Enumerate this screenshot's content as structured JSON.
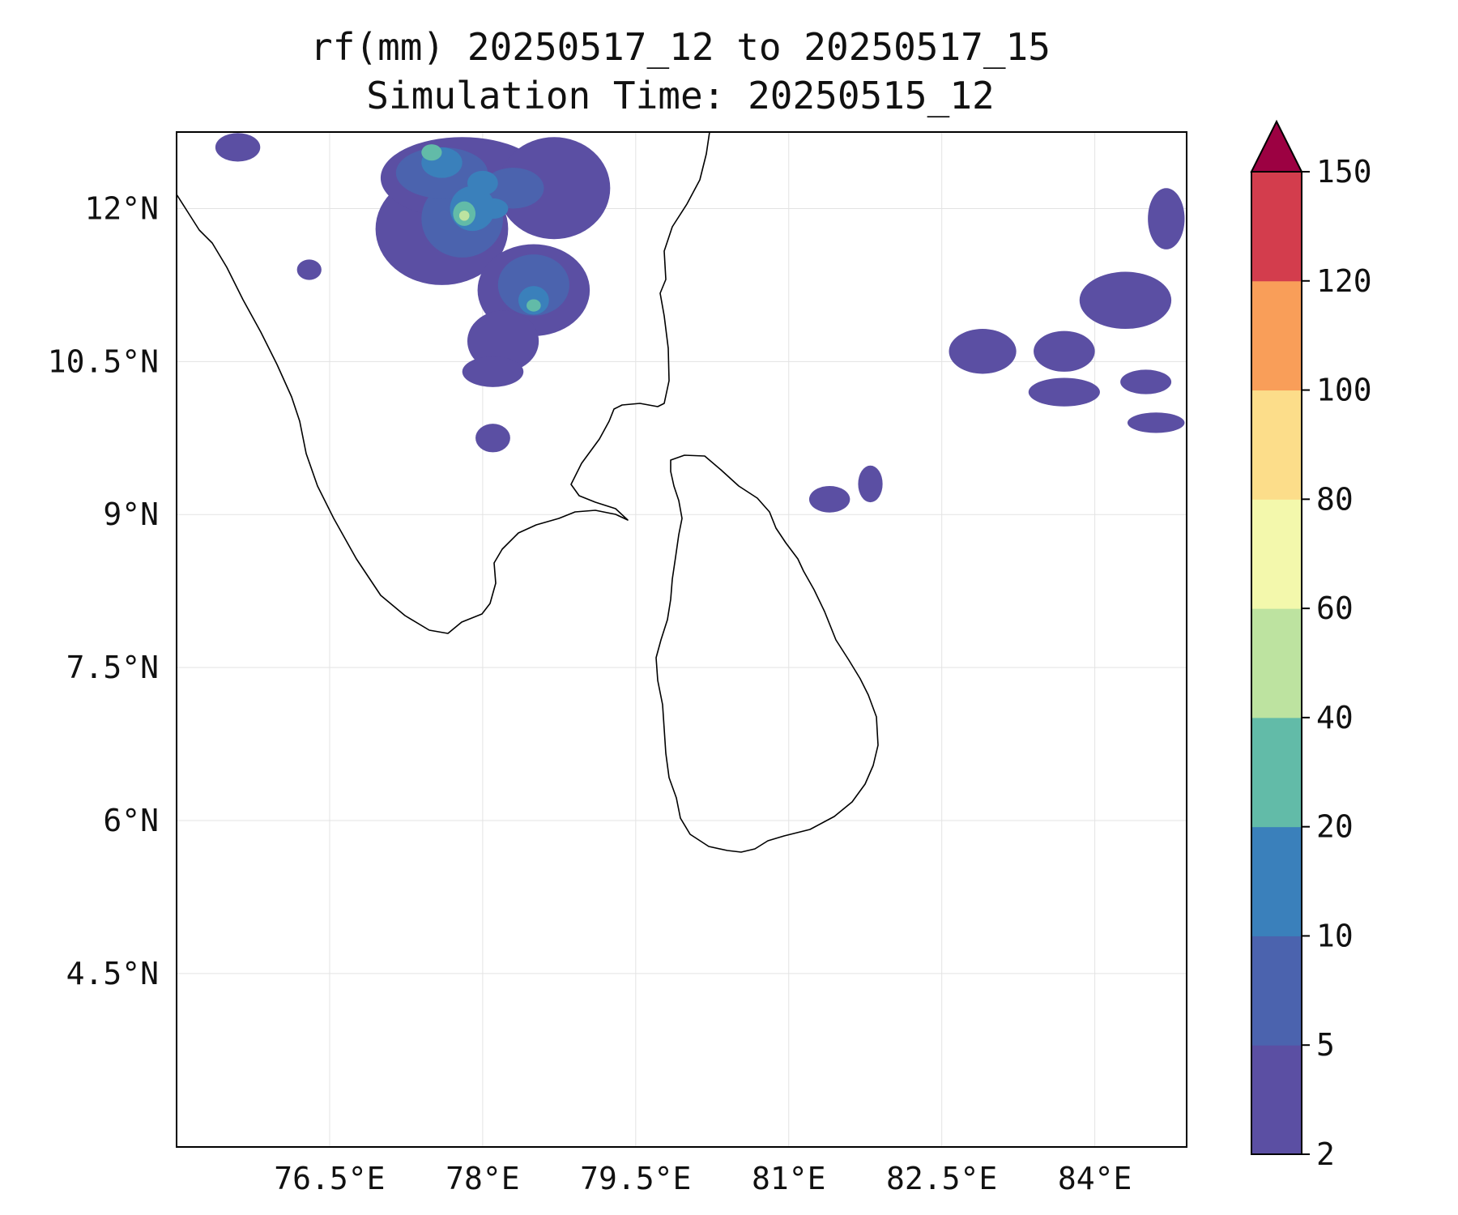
{
  "title": {
    "line1": "rf(mm) 20250517_12 to 20250517_15",
    "line2": "Simulation Time: 20250515_12"
  },
  "map": {
    "lon_range": [
      75.0,
      84.9
    ],
    "lat_range": [
      2.8,
      12.75
    ],
    "x_ticks": [
      {
        "value": 76.5,
        "label": "76.5°E"
      },
      {
        "value": 78.0,
        "label": "78°E"
      },
      {
        "value": 79.5,
        "label": "79.5°E"
      },
      {
        "value": 81.0,
        "label": "81°E"
      },
      {
        "value": 82.5,
        "label": "82.5°E"
      },
      {
        "value": 84.0,
        "label": "84°E"
      }
    ],
    "y_ticks": [
      {
        "value": 12.0,
        "label": "12°N"
      },
      {
        "value": 10.5,
        "label": "10.5°N"
      },
      {
        "value": 9.0,
        "label": "9°N"
      },
      {
        "value": 7.5,
        "label": "7.5°N"
      },
      {
        "value": 6.0,
        "label": "6°N"
      },
      {
        "value": 4.5,
        "label": "4.5°N"
      }
    ],
    "grid": true,
    "coastline_color": "#000000",
    "precip_areas": [
      {
        "level": 0,
        "lon": 77.6,
        "lat": 11.8,
        "rlon": 0.65,
        "rlat": 0.55
      },
      {
        "level": 0,
        "lon": 78.5,
        "lat": 11.2,
        "rlon": 0.55,
        "rlat": 0.45
      },
      {
        "level": 0,
        "lon": 77.8,
        "lat": 12.3,
        "rlon": 0.8,
        "rlat": 0.4
      },
      {
        "level": 0,
        "lon": 78.7,
        "lat": 12.2,
        "rlon": 0.55,
        "rlat": 0.5
      },
      {
        "level": 0,
        "lon": 78.2,
        "lat": 10.7,
        "rlon": 0.35,
        "rlat": 0.3
      },
      {
        "level": 0,
        "lon": 78.1,
        "lat": 10.4,
        "rlon": 0.3,
        "rlat": 0.15
      },
      {
        "level": 0,
        "lon": 78.1,
        "lat": 9.75,
        "rlon": 0.17,
        "rlat": 0.14
      },
      {
        "level": 0,
        "lon": 75.6,
        "lat": 12.6,
        "rlon": 0.22,
        "rlat": 0.14
      },
      {
        "level": 0,
        "lon": 76.3,
        "lat": 11.4,
        "rlon": 0.12,
        "rlat": 0.1
      },
      {
        "level": 0,
        "lon": 82.9,
        "lat": 10.6,
        "rlon": 0.33,
        "rlat": 0.22
      },
      {
        "level": 0,
        "lon": 83.7,
        "lat": 10.6,
        "rlon": 0.3,
        "rlat": 0.2
      },
      {
        "level": 0,
        "lon": 84.3,
        "lat": 11.1,
        "rlon": 0.45,
        "rlat": 0.28
      },
      {
        "level": 0,
        "lon": 83.7,
        "lat": 10.2,
        "rlon": 0.35,
        "rlat": 0.14
      },
      {
        "level": 0,
        "lon": 84.5,
        "lat": 10.3,
        "rlon": 0.25,
        "rlat": 0.12
      },
      {
        "level": 0,
        "lon": 84.7,
        "lat": 11.9,
        "rlon": 0.18,
        "rlat": 0.3
      },
      {
        "level": 0,
        "lon": 84.6,
        "lat": 9.9,
        "rlon": 0.28,
        "rlat": 0.1
      },
      {
        "level": 0,
        "lon": 81.4,
        "lat": 9.15,
        "rlon": 0.2,
        "rlat": 0.13
      },
      {
        "level": 0,
        "lon": 81.8,
        "lat": 9.3,
        "rlon": 0.12,
        "rlat": 0.18
      },
      {
        "level": 1,
        "lon": 77.8,
        "lat": 11.9,
        "rlon": 0.4,
        "rlat": 0.38
      },
      {
        "level": 1,
        "lon": 78.5,
        "lat": 11.25,
        "rlon": 0.35,
        "rlat": 0.3
      },
      {
        "level": 1,
        "lon": 77.6,
        "lat": 12.35,
        "rlon": 0.45,
        "rlat": 0.25
      },
      {
        "level": 1,
        "lon": 78.3,
        "lat": 12.2,
        "rlon": 0.3,
        "rlat": 0.2
      },
      {
        "level": 2,
        "lon": 77.9,
        "lat": 12.0,
        "rlon": 0.22,
        "rlat": 0.22
      },
      {
        "level": 2,
        "lon": 78.5,
        "lat": 11.1,
        "rlon": 0.15,
        "rlat": 0.14
      },
      {
        "level": 2,
        "lon": 77.6,
        "lat": 12.45,
        "rlon": 0.2,
        "rlat": 0.15
      },
      {
        "level": 2,
        "lon": 78.0,
        "lat": 12.25,
        "rlon": 0.15,
        "rlat": 0.12
      },
      {
        "level": 2,
        "lon": 78.1,
        "lat": 12.0,
        "rlon": 0.15,
        "rlat": 0.1
      },
      {
        "level": 3,
        "lon": 77.82,
        "lat": 11.95,
        "rlon": 0.11,
        "rlat": 0.12
      },
      {
        "level": 3,
        "lon": 77.5,
        "lat": 12.55,
        "rlon": 0.1,
        "rlat": 0.08
      },
      {
        "level": 3,
        "lon": 78.5,
        "lat": 11.05,
        "rlon": 0.07,
        "rlat": 0.06
      },
      {
        "level": 4,
        "lon": 77.82,
        "lat": 11.93,
        "rlon": 0.05,
        "rlat": 0.05
      }
    ]
  },
  "colorbar": {
    "levels": [
      "2",
      "5",
      "10",
      "20",
      "40",
      "60",
      "80",
      "100",
      "120",
      "150"
    ],
    "colors": [
      "#5b4fa3",
      "#4b63ae",
      "#3a80bb",
      "#62bba8",
      "#bde3a0",
      "#f3f8ac",
      "#fcdd8a",
      "#f99e59",
      "#d33d4d"
    ],
    "extend_color": "#9c0142"
  }
}
